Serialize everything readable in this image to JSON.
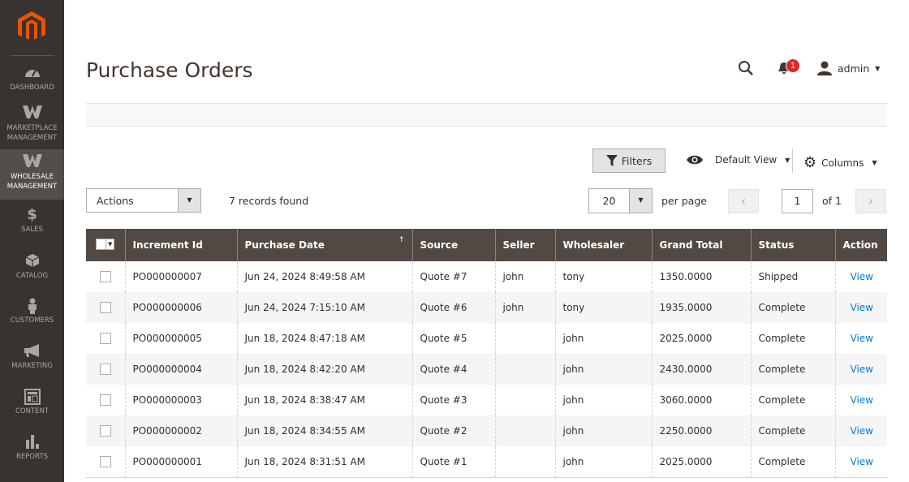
{
  "sidebar": {
    "items": [
      {
        "label": "DASHBOARD",
        "icon": "dashboard-icon"
      },
      {
        "label": "MARKETPLACE MANAGEMENT",
        "icon": "w-icon"
      },
      {
        "label": "WHOLESALE MANAGEMENT",
        "icon": "w-icon",
        "active": true
      },
      {
        "label": "SALES",
        "icon": "dollar-icon"
      },
      {
        "label": "CATALOG",
        "icon": "box-icon"
      },
      {
        "label": "CUSTOMERS",
        "icon": "person-icon"
      },
      {
        "label": "MARKETING",
        "icon": "megaphone-icon"
      },
      {
        "label": "CONTENT",
        "icon": "layout-icon"
      },
      {
        "label": "REPORTS",
        "icon": "bar-chart-icon"
      }
    ]
  },
  "header": {
    "title": "Purchase Orders",
    "notification_count": "1",
    "user": "admin"
  },
  "toolbar": {
    "filters": "Filters",
    "view": "Default View",
    "columns": "Columns",
    "actions": "Actions",
    "records": "7 records found",
    "per_page_value": "20",
    "per_page_label": "per page",
    "page": "1",
    "of": "of 1"
  },
  "table": {
    "headers": [
      "Increment Id",
      "Purchase Date",
      "Source",
      "Seller",
      "Wholesaler",
      "Grand Total",
      "Status",
      "Action"
    ],
    "sort_indicator": "↑",
    "rows": [
      [
        "PO000000007",
        "Jun 24, 2024 8:49:58 AM",
        "Quote #7",
        "john",
        "tony",
        "1350.0000",
        "Shipped",
        "View"
      ],
      [
        "PO000000006",
        "Jun 24, 2024 7:15:10 AM",
        "Quote #6",
        "john",
        "tony",
        "1935.0000",
        "Complete",
        "View"
      ],
      [
        "PO000000005",
        "Jun 18, 2024 8:47:18 AM",
        "Quote #5",
        "",
        "john",
        "2025.0000",
        "Complete",
        "View"
      ],
      [
        "PO000000004",
        "Jun 18, 2024 8:42:20 AM",
        "Quote #4",
        "",
        "john",
        "2430.0000",
        "Complete",
        "View"
      ],
      [
        "PO000000003",
        "Jun 18, 2024 8:38:47 AM",
        "Quote #3",
        "",
        "john",
        "3060.0000",
        "Complete",
        "View"
      ],
      [
        "PO000000002",
        "Jun 18, 2024 8:34:55 AM",
        "Quote #2",
        "",
        "john",
        "2250.0000",
        "Complete",
        "View"
      ],
      [
        "PO000000001",
        "Jun 18, 2024 8:31:51 AM",
        "Quote #1",
        "",
        "john",
        "2025.0000",
        "Complete",
        "View"
      ]
    ]
  },
  "colors": {
    "sidebar": "#373330",
    "header_row": "#514943",
    "brand": "#eb5202",
    "link": "#007bdb",
    "badge": "#e22626"
  }
}
